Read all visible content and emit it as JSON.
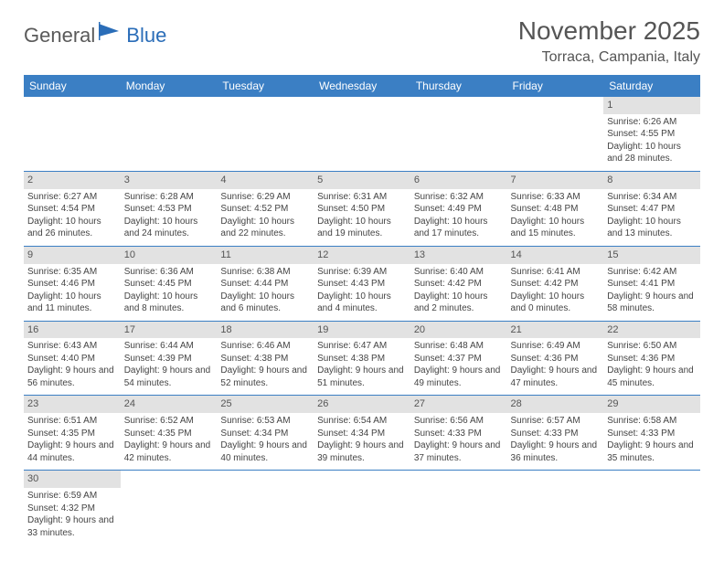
{
  "logo": {
    "text1": "General",
    "text2": "Blue"
  },
  "title": "November 2025",
  "location": "Torraca, Campania, Italy",
  "colors": {
    "header_bg": "#3b7fc4",
    "header_text": "#ffffff",
    "daynum_bg": "#e2e2e2",
    "row_divider": "#3b7fc4",
    "logo_gray": "#5a5a5a",
    "logo_blue": "#2a6db8",
    "text": "#444444"
  },
  "weekdays": [
    "Sunday",
    "Monday",
    "Tuesday",
    "Wednesday",
    "Thursday",
    "Friday",
    "Saturday"
  ],
  "weeks": [
    [
      null,
      null,
      null,
      null,
      null,
      null,
      {
        "n": "1",
        "sunrise": "Sunrise: 6:26 AM",
        "sunset": "Sunset: 4:55 PM",
        "daylight": "Daylight: 10 hours and 28 minutes."
      }
    ],
    [
      {
        "n": "2",
        "sunrise": "Sunrise: 6:27 AM",
        "sunset": "Sunset: 4:54 PM",
        "daylight": "Daylight: 10 hours and 26 minutes."
      },
      {
        "n": "3",
        "sunrise": "Sunrise: 6:28 AM",
        "sunset": "Sunset: 4:53 PM",
        "daylight": "Daylight: 10 hours and 24 minutes."
      },
      {
        "n": "4",
        "sunrise": "Sunrise: 6:29 AM",
        "sunset": "Sunset: 4:52 PM",
        "daylight": "Daylight: 10 hours and 22 minutes."
      },
      {
        "n": "5",
        "sunrise": "Sunrise: 6:31 AM",
        "sunset": "Sunset: 4:50 PM",
        "daylight": "Daylight: 10 hours and 19 minutes."
      },
      {
        "n": "6",
        "sunrise": "Sunrise: 6:32 AM",
        "sunset": "Sunset: 4:49 PM",
        "daylight": "Daylight: 10 hours and 17 minutes."
      },
      {
        "n": "7",
        "sunrise": "Sunrise: 6:33 AM",
        "sunset": "Sunset: 4:48 PM",
        "daylight": "Daylight: 10 hours and 15 minutes."
      },
      {
        "n": "8",
        "sunrise": "Sunrise: 6:34 AM",
        "sunset": "Sunset: 4:47 PM",
        "daylight": "Daylight: 10 hours and 13 minutes."
      }
    ],
    [
      {
        "n": "9",
        "sunrise": "Sunrise: 6:35 AM",
        "sunset": "Sunset: 4:46 PM",
        "daylight": "Daylight: 10 hours and 11 minutes."
      },
      {
        "n": "10",
        "sunrise": "Sunrise: 6:36 AM",
        "sunset": "Sunset: 4:45 PM",
        "daylight": "Daylight: 10 hours and 8 minutes."
      },
      {
        "n": "11",
        "sunrise": "Sunrise: 6:38 AM",
        "sunset": "Sunset: 4:44 PM",
        "daylight": "Daylight: 10 hours and 6 minutes."
      },
      {
        "n": "12",
        "sunrise": "Sunrise: 6:39 AM",
        "sunset": "Sunset: 4:43 PM",
        "daylight": "Daylight: 10 hours and 4 minutes."
      },
      {
        "n": "13",
        "sunrise": "Sunrise: 6:40 AM",
        "sunset": "Sunset: 4:42 PM",
        "daylight": "Daylight: 10 hours and 2 minutes."
      },
      {
        "n": "14",
        "sunrise": "Sunrise: 6:41 AM",
        "sunset": "Sunset: 4:42 PM",
        "daylight": "Daylight: 10 hours and 0 minutes."
      },
      {
        "n": "15",
        "sunrise": "Sunrise: 6:42 AM",
        "sunset": "Sunset: 4:41 PM",
        "daylight": "Daylight: 9 hours and 58 minutes."
      }
    ],
    [
      {
        "n": "16",
        "sunrise": "Sunrise: 6:43 AM",
        "sunset": "Sunset: 4:40 PM",
        "daylight": "Daylight: 9 hours and 56 minutes."
      },
      {
        "n": "17",
        "sunrise": "Sunrise: 6:44 AM",
        "sunset": "Sunset: 4:39 PM",
        "daylight": "Daylight: 9 hours and 54 minutes."
      },
      {
        "n": "18",
        "sunrise": "Sunrise: 6:46 AM",
        "sunset": "Sunset: 4:38 PM",
        "daylight": "Daylight: 9 hours and 52 minutes."
      },
      {
        "n": "19",
        "sunrise": "Sunrise: 6:47 AM",
        "sunset": "Sunset: 4:38 PM",
        "daylight": "Daylight: 9 hours and 51 minutes."
      },
      {
        "n": "20",
        "sunrise": "Sunrise: 6:48 AM",
        "sunset": "Sunset: 4:37 PM",
        "daylight": "Daylight: 9 hours and 49 minutes."
      },
      {
        "n": "21",
        "sunrise": "Sunrise: 6:49 AM",
        "sunset": "Sunset: 4:36 PM",
        "daylight": "Daylight: 9 hours and 47 minutes."
      },
      {
        "n": "22",
        "sunrise": "Sunrise: 6:50 AM",
        "sunset": "Sunset: 4:36 PM",
        "daylight": "Daylight: 9 hours and 45 minutes."
      }
    ],
    [
      {
        "n": "23",
        "sunrise": "Sunrise: 6:51 AM",
        "sunset": "Sunset: 4:35 PM",
        "daylight": "Daylight: 9 hours and 44 minutes."
      },
      {
        "n": "24",
        "sunrise": "Sunrise: 6:52 AM",
        "sunset": "Sunset: 4:35 PM",
        "daylight": "Daylight: 9 hours and 42 minutes."
      },
      {
        "n": "25",
        "sunrise": "Sunrise: 6:53 AM",
        "sunset": "Sunset: 4:34 PM",
        "daylight": "Daylight: 9 hours and 40 minutes."
      },
      {
        "n": "26",
        "sunrise": "Sunrise: 6:54 AM",
        "sunset": "Sunset: 4:34 PM",
        "daylight": "Daylight: 9 hours and 39 minutes."
      },
      {
        "n": "27",
        "sunrise": "Sunrise: 6:56 AM",
        "sunset": "Sunset: 4:33 PM",
        "daylight": "Daylight: 9 hours and 37 minutes."
      },
      {
        "n": "28",
        "sunrise": "Sunrise: 6:57 AM",
        "sunset": "Sunset: 4:33 PM",
        "daylight": "Daylight: 9 hours and 36 minutes."
      },
      {
        "n": "29",
        "sunrise": "Sunrise: 6:58 AM",
        "sunset": "Sunset: 4:33 PM",
        "daylight": "Daylight: 9 hours and 35 minutes."
      }
    ],
    [
      {
        "n": "30",
        "sunrise": "Sunrise: 6:59 AM",
        "sunset": "Sunset: 4:32 PM",
        "daylight": "Daylight: 9 hours and 33 minutes."
      },
      null,
      null,
      null,
      null,
      null,
      null
    ]
  ]
}
